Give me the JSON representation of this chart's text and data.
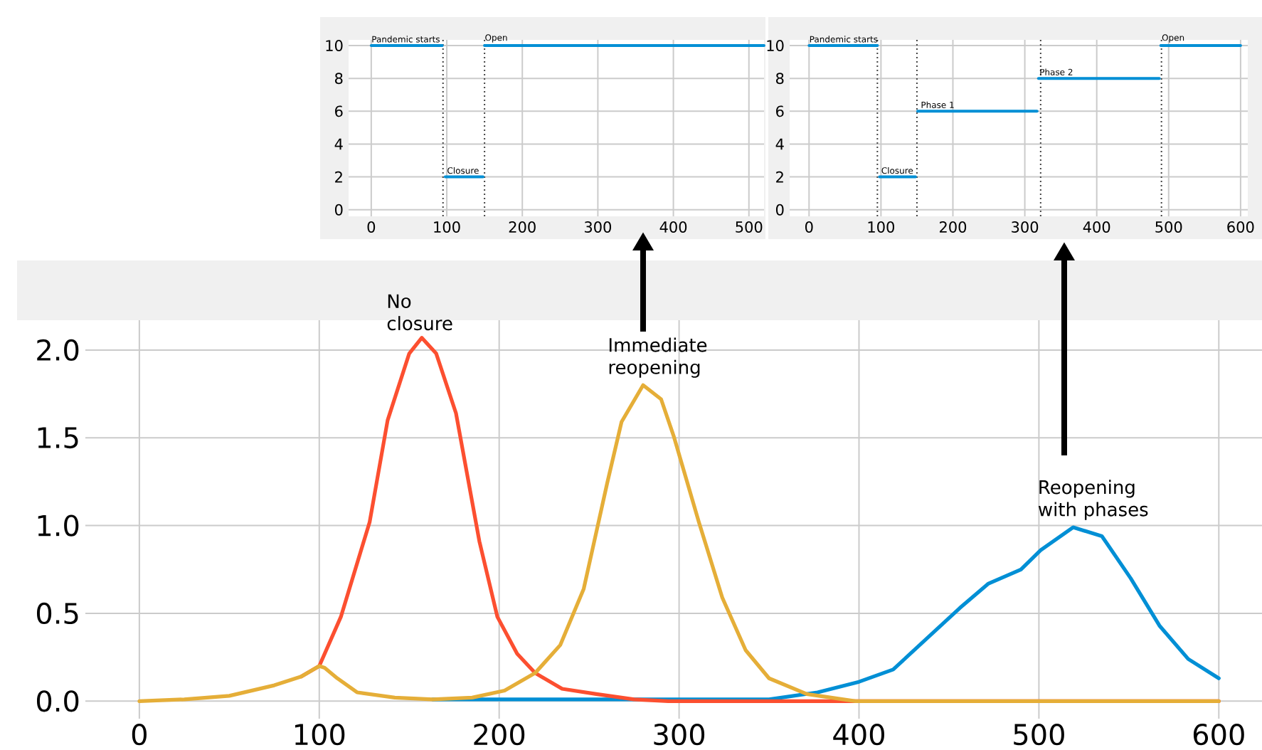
{
  "chart_data": [
    {
      "type": "line",
      "xlim": [
        -30,
        520
      ],
      "ylim": [
        -0.4,
        10.35
      ],
      "xticks": [
        0,
        100,
        200,
        300,
        400,
        500
      ],
      "yticks": [
        0,
        2,
        4,
        6,
        8,
        10
      ],
      "grid": true,
      "series": [
        {
          "color": "#008fd5",
          "x": [
            0,
            94
          ],
          "values": [
            10,
            10
          ]
        },
        {
          "color": "#008fd5",
          "x": [
            98,
            148
          ],
          "values": [
            2,
            2
          ]
        },
        {
          "color": "#008fd5",
          "x": [
            150,
            520
          ],
          "values": [
            10,
            10
          ]
        }
      ],
      "ref_lines": [
        {
          "axis": "x",
          "value": 95,
          "color": "#444444",
          "line_style": "dotted"
        },
        {
          "axis": "x",
          "value": 150,
          "color": "#444444",
          "line_style": "dotted"
        }
      ],
      "annotations": [
        {
          "text": "Pandemic starts",
          "x": 0,
          "y": 10
        },
        {
          "text": "Closure",
          "x": 100,
          "y": 2
        },
        {
          "text": "Open",
          "x": 150,
          "y": 10
        }
      ]
    },
    {
      "type": "line",
      "xlim": [
        -27,
        610
      ],
      "ylim": [
        -0.4,
        10.35
      ],
      "xticks": [
        0,
        100,
        200,
        300,
        400,
        500,
        600
      ],
      "yticks": [
        0,
        2,
        4,
        6,
        8,
        10
      ],
      "grid": true,
      "series": [
        {
          "color": "#008fd5",
          "x": [
            0,
            95
          ],
          "values": [
            10,
            10
          ]
        },
        {
          "color": "#008fd5",
          "x": [
            98,
            148
          ],
          "values": [
            2,
            2
          ]
        },
        {
          "color": "#008fd5",
          "x": [
            151,
            317
          ],
          "values": [
            6,
            6
          ]
        },
        {
          "color": "#008fd5",
          "x": [
            319,
            487
          ],
          "values": [
            8,
            8
          ]
        },
        {
          "color": "#008fd5",
          "x": [
            489,
            600
          ],
          "values": [
            10,
            10
          ]
        }
      ],
      "ref_lines": [
        {
          "axis": "x",
          "value": 95,
          "color": "#444444",
          "line_style": "dotted"
        },
        {
          "axis": "x",
          "value": 150,
          "color": "#444444",
          "line_style": "dotted"
        },
        {
          "axis": "x",
          "value": 322,
          "color": "#444444",
          "line_style": "dotted"
        },
        {
          "axis": "x",
          "value": 490,
          "color": "#444444",
          "line_style": "dotted"
        }
      ],
      "annotations": [
        {
          "text": "Pandemic starts",
          "x": 0,
          "y": 10
        },
        {
          "text": "Closure",
          "x": 100,
          "y": 2
        },
        {
          "text": "Phase 1",
          "x": 155,
          "y": 6
        },
        {
          "text": "Phase 2",
          "x": 320,
          "y": 8
        },
        {
          "text": "Open",
          "x": 490,
          "y": 10
        }
      ]
    },
    {
      "type": "line",
      "xlim": [
        -30,
        624
      ],
      "ylim": [
        -0.1,
        2.17
      ],
      "xticks": [
        0,
        100,
        200,
        300,
        400,
        500,
        600
      ],
      "yticks": [
        {
          "value": 0,
          "label": "0.0"
        },
        0.5,
        {
          "value": 1,
          "label": "1.0"
        },
        1.5,
        {
          "value": 2,
          "label": "2.0"
        }
      ],
      "grid": true,
      "series": [
        {
          "name": "Reopening with phases",
          "color": "#008fd5",
          "x": [
            163,
            200,
            250,
            300,
            350,
            377,
            400,
            419,
            437,
            456,
            472,
            490,
            501,
            519,
            535,
            551,
            567,
            583,
            600
          ],
          "values": [
            0.01,
            0.01,
            0.01,
            0.01,
            0.01,
            0.05,
            0.11,
            0.18,
            0.35,
            0.53,
            0.67,
            0.75,
            0.86,
            0.99,
            0.94,
            0.7,
            0.43,
            0.24,
            0.13
          ]
        },
        {
          "name": "No closure",
          "color": "#fc4f30",
          "x": [
            90,
            100,
            112,
            128,
            138,
            150,
            157,
            165,
            176,
            189,
            199,
            210,
            220,
            235,
            254,
            275,
            294,
            350,
            400,
            450,
            500,
            550,
            600
          ],
          "values": [
            0.14,
            0.2,
            0.48,
            1.02,
            1.6,
            1.98,
            2.07,
            1.98,
            1.64,
            0.91,
            0.48,
            0.27,
            0.16,
            0.07,
            0.04,
            0.01,
            0,
            0,
            0,
            0,
            0,
            0,
            0
          ]
        },
        {
          "name": "Immediate reopening",
          "color": "#e5ae38",
          "x": [
            0,
            25,
            50,
            75,
            90,
            100,
            103,
            110,
            121,
            142,
            163,
            185,
            203,
            220,
            234,
            247,
            260,
            268,
            280,
            290,
            297,
            311,
            324,
            337,
            350,
            371,
            398,
            450,
            500,
            550,
            600
          ],
          "values": [
            0,
            0.01,
            0.03,
            0.09,
            0.14,
            0.2,
            0.19,
            0.13,
            0.05,
            0.02,
            0.01,
            0.02,
            0.06,
            0.16,
            0.32,
            0.64,
            1.24,
            1.59,
            1.8,
            1.72,
            1.51,
            1.02,
            0.59,
            0.29,
            0.13,
            0.04,
            0,
            0,
            0,
            0,
            0
          ]
        }
      ]
    }
  ]
}
